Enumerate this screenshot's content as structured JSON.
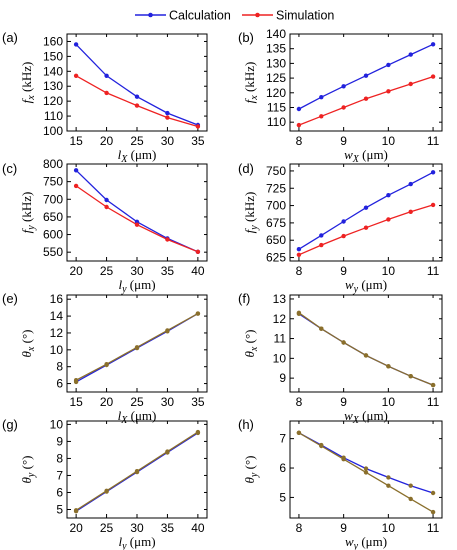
{
  "legend": [
    {
      "label": "Calculation",
      "color": "#2222dd"
    },
    {
      "label": "Simulation",
      "color": "#ee2222"
    }
  ],
  "chart_data": [
    {
      "panel": "(a)",
      "type": "line",
      "xlabel": "l_X (μm)",
      "ylabel": "f_x (kHz)",
      "xlim": [
        13.5,
        36.5
      ],
      "ylim": [
        100,
        165
      ],
      "xticks": [
        15,
        20,
        25,
        30,
        35
      ],
      "yticks": [
        100,
        110,
        120,
        130,
        140,
        150,
        160
      ],
      "x": [
        15,
        20,
        25,
        30,
        35
      ],
      "series": [
        {
          "name": "Calculation",
          "values": [
            158,
            137,
            123,
            112,
            104
          ]
        },
        {
          "name": "Simulation",
          "values": [
            137,
            125.5,
            117,
            109,
            103
          ]
        }
      ]
    },
    {
      "panel": "(b)",
      "type": "line",
      "xlabel": "w_X (μm)",
      "ylabel": "f_x (kHz)",
      "xlim": [
        7.8,
        11.2
      ],
      "ylim": [
        107,
        140
      ],
      "xticks": [
        8,
        9,
        10,
        11
      ],
      "yticks": [
        110,
        115,
        120,
        125,
        130,
        135,
        140
      ],
      "x": [
        8,
        8.5,
        9,
        9.5,
        10,
        10.5,
        11
      ],
      "series": [
        {
          "name": "Calculation",
          "values": [
            114.5,
            118.5,
            122.2,
            125.8,
            129.5,
            133,
            136.5
          ]
        },
        {
          "name": "Simulation",
          "values": [
            109,
            112,
            115,
            118,
            120.5,
            123,
            125.5
          ]
        }
      ]
    },
    {
      "panel": "(c)",
      "type": "line",
      "xlabel": "l_y (μm)",
      "ylabel": "f_y (kHz)",
      "xlim": [
        18.5,
        41.5
      ],
      "ylim": [
        525,
        800
      ],
      "xticks": [
        20,
        25,
        30,
        35,
        40
      ],
      "yticks": [
        550,
        600,
        650,
        700,
        750,
        800
      ],
      "x": [
        20,
        25,
        30,
        35,
        40
      ],
      "series": [
        {
          "name": "Calculation",
          "values": [
            782,
            698,
            636,
            589,
            551
          ]
        },
        {
          "name": "Simulation",
          "values": [
            738,
            678,
            628,
            586,
            551
          ]
        }
      ]
    },
    {
      "panel": "(d)",
      "type": "line",
      "xlabel": "w_y (μm)",
      "ylabel": "f_y (kHz)",
      "xlim": [
        7.8,
        11.2
      ],
      "ylim": [
        620,
        760
      ],
      "xticks": [
        8,
        9,
        10,
        11
      ],
      "yticks": [
        625,
        650,
        675,
        700,
        725,
        750
      ],
      "x": [
        8,
        8.5,
        9,
        9.5,
        10,
        10.5,
        11
      ],
      "series": [
        {
          "name": "Calculation",
          "values": [
            637,
            657,
            677,
            697,
            715,
            731,
            748
          ]
        },
        {
          "name": "Simulation",
          "values": [
            629,
            643,
            656,
            668,
            680,
            691,
            701
          ]
        }
      ]
    },
    {
      "panel": "(e)",
      "type": "line",
      "xlabel": "l_X (μm)",
      "ylabel": "θ_x (°)",
      "xlim": [
        13.5,
        36.5
      ],
      "ylim": [
        5,
        16.5
      ],
      "xticks": [
        15,
        20,
        25,
        30,
        35
      ],
      "yticks": [
        6,
        8,
        10,
        12,
        14,
        16
      ],
      "x": [
        15,
        20,
        25,
        30,
        35
      ],
      "series": [
        {
          "name": "Calculation",
          "values": [
            6.2,
            8.2,
            10.2,
            12.2,
            14.3
          ]
        },
        {
          "name": "Simulation",
          "values": [
            6.4,
            8.3,
            10.3,
            12.3,
            14.3
          ]
        }
      ]
    },
    {
      "panel": "(f)",
      "type": "line",
      "xlabel": "w_X (μm)",
      "ylabel": "θ_x (°)",
      "xlim": [
        7.8,
        11.2
      ],
      "ylim": [
        8.3,
        13.2
      ],
      "xticks": [
        8,
        9,
        10,
        11
      ],
      "yticks": [
        9,
        10,
        11,
        12,
        13
      ],
      "x": [
        8,
        8.5,
        9,
        9.5,
        10,
        10.5,
        11
      ],
      "series": [
        {
          "name": "Calculation",
          "values": [
            12.25,
            11.5,
            10.8,
            10.15,
            9.6,
            9.1,
            8.65
          ]
        },
        {
          "name": "Simulation",
          "values": [
            12.3,
            11.5,
            10.8,
            10.15,
            9.6,
            9.1,
            8.65
          ]
        }
      ]
    },
    {
      "panel": "(g)",
      "type": "line",
      "xlabel": "l_y (μm)",
      "ylabel": "θ_y (°)",
      "xlim": [
        18.5,
        41.5
      ],
      "ylim": [
        4.5,
        10.2
      ],
      "xticks": [
        20,
        25,
        30,
        35,
        40
      ],
      "yticks": [
        5,
        6,
        7,
        8,
        9,
        10
      ],
      "x": [
        20,
        25,
        30,
        35,
        40
      ],
      "series": [
        {
          "name": "Calculation",
          "values": [
            4.9,
            6.05,
            7.2,
            8.35,
            9.5
          ]
        },
        {
          "name": "Simulation",
          "values": [
            4.95,
            6.1,
            7.25,
            8.4,
            9.55
          ]
        }
      ]
    },
    {
      "panel": "(h)",
      "type": "line",
      "xlabel": "w_y (μm)",
      "ylabel": "θ_y (°)",
      "xlim": [
        7.8,
        11.2
      ],
      "ylim": [
        4.3,
        7.6
      ],
      "xticks": [
        8,
        9,
        10,
        11
      ],
      "yticks": [
        5,
        6,
        7
      ],
      "x": [
        8,
        8.5,
        9,
        9.5,
        10,
        10.5,
        11
      ],
      "series": [
        {
          "name": "Calculation",
          "values": [
            7.2,
            6.78,
            6.35,
            5.98,
            5.68,
            5.4,
            5.15
          ]
        },
        {
          "name": "Simulation",
          "values": [
            7.2,
            6.75,
            6.3,
            5.85,
            5.4,
            4.95,
            4.5
          ]
        }
      ]
    }
  ]
}
